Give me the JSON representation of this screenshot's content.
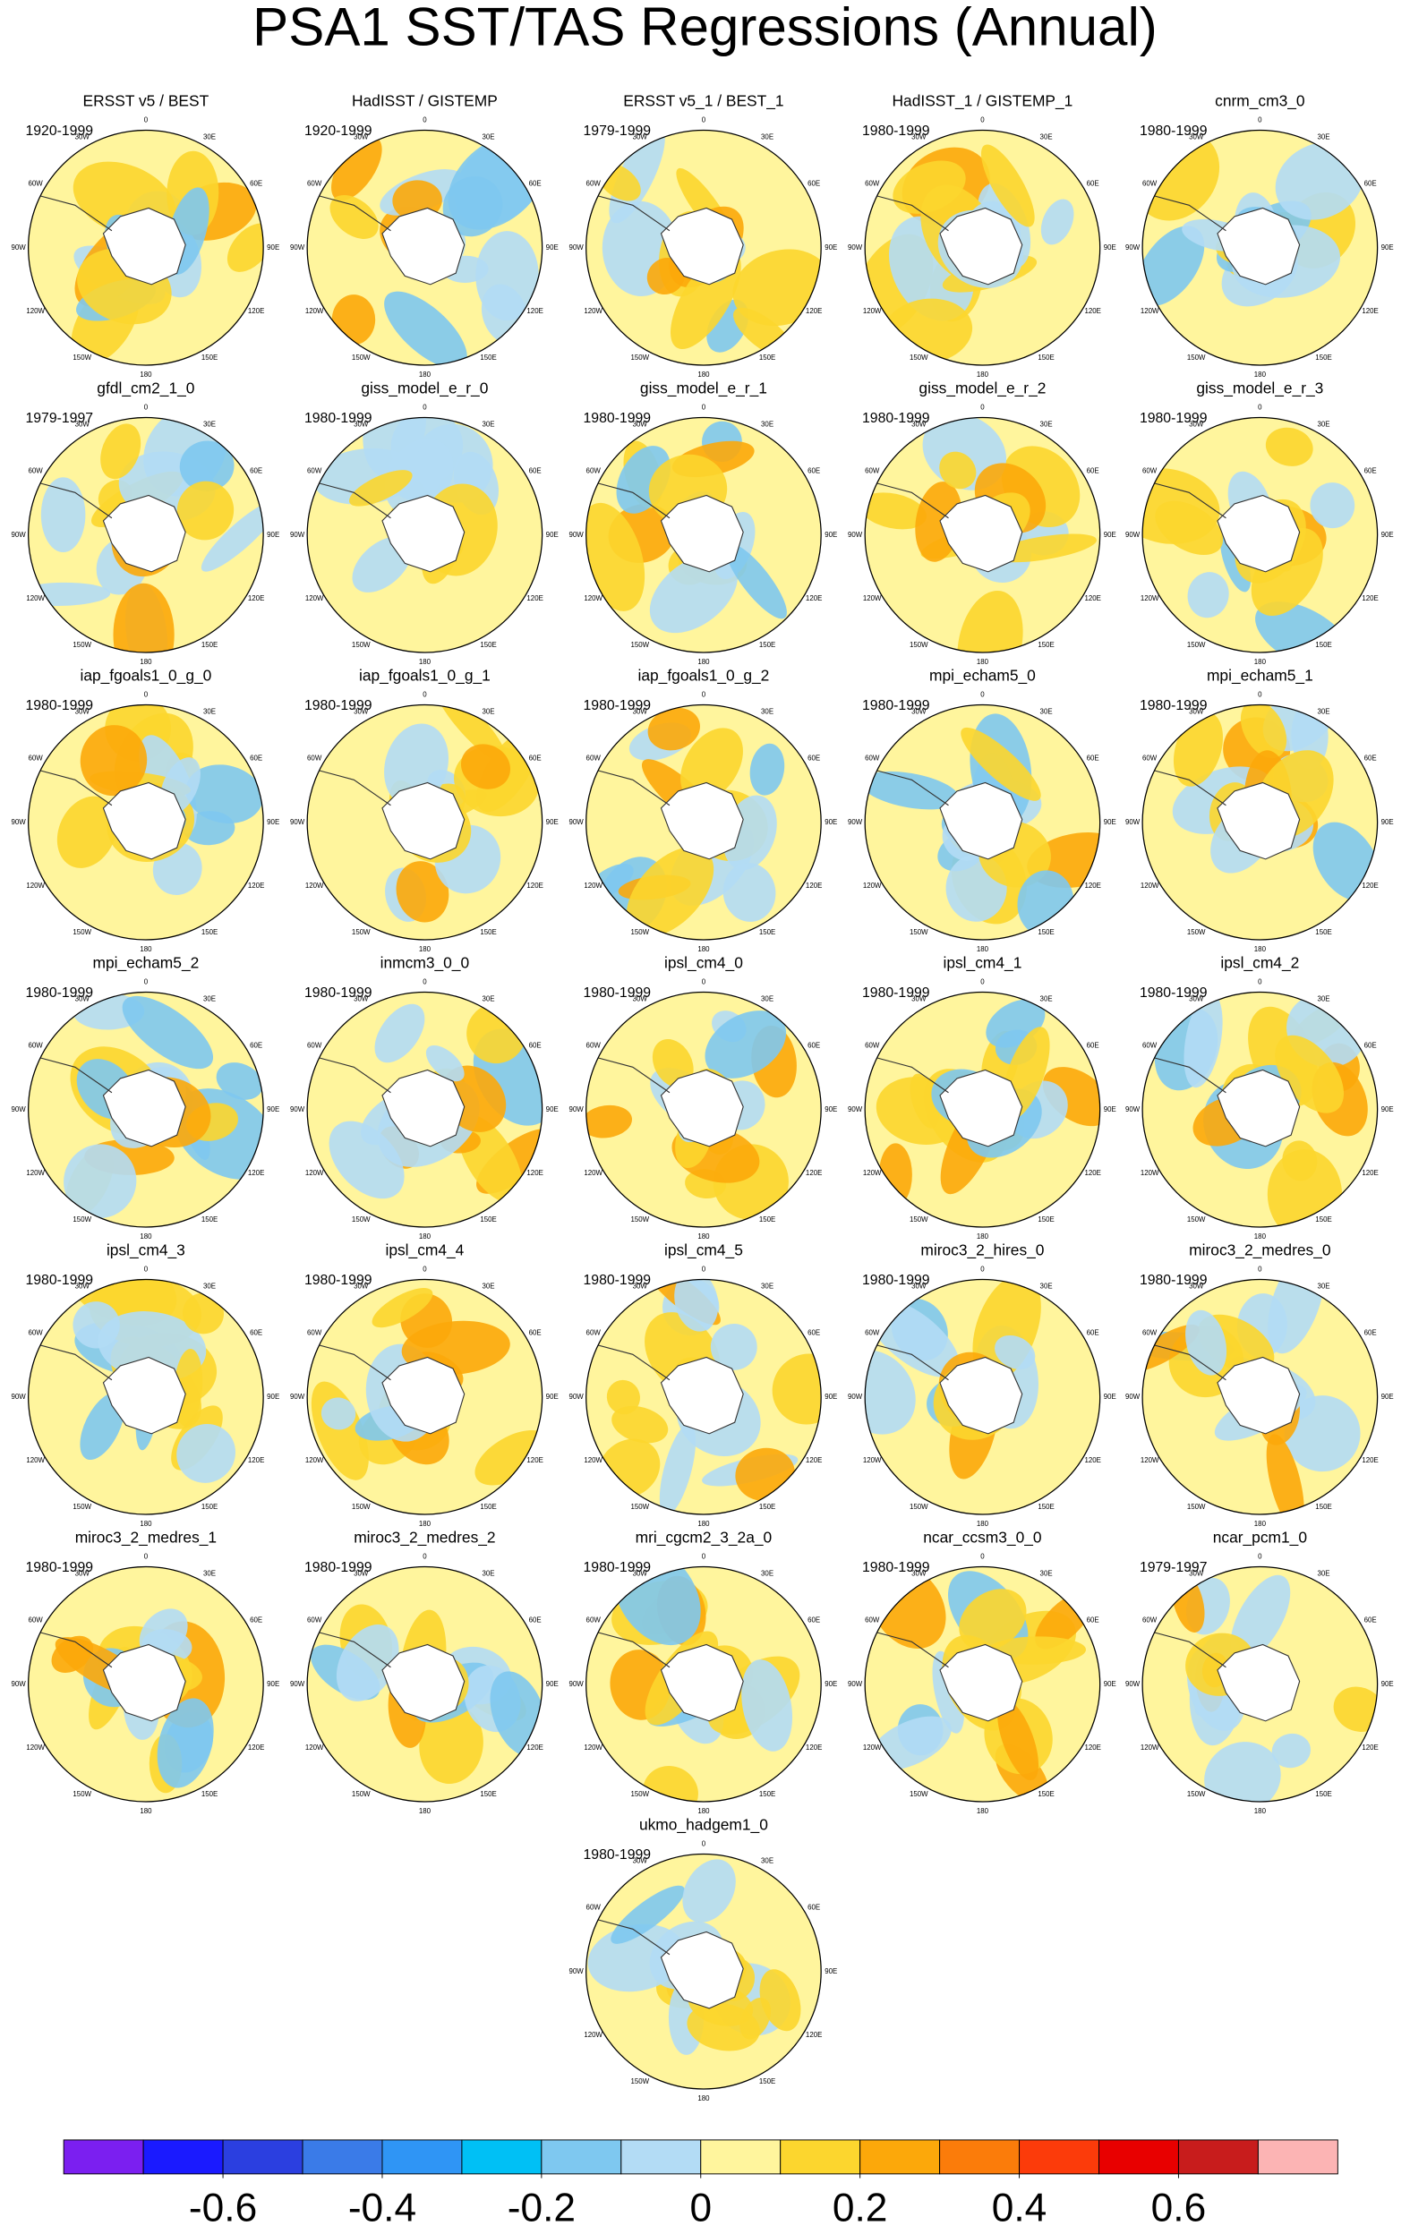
{
  "title": "PSA1 SST/TAS Regressions (Annual)",
  "lon_labels": [
    "0",
    "30E",
    "60E",
    "90E",
    "120E",
    "150E",
    "180",
    "150W",
    "120W",
    "90W",
    "60W",
    "30W"
  ],
  "panels": [
    {
      "name": "ERSST v5 / BEST",
      "period": "1920-1999"
    },
    {
      "name": "HadISST / GISTEMP",
      "period": "1920-1999"
    },
    {
      "name": "ERSST v5_1 / BEST_1",
      "period": "1979-1999"
    },
    {
      "name": "HadISST_1 / GISTEMP_1",
      "period": "1980-1999"
    },
    {
      "name": "cnrm_cm3_0",
      "period": "1980-1999"
    },
    {
      "name": "gfdl_cm2_1_0",
      "period": "1979-1997"
    },
    {
      "name": "giss_model_e_r_0",
      "period": "1980-1999"
    },
    {
      "name": "giss_model_e_r_1",
      "period": "1980-1999"
    },
    {
      "name": "giss_model_e_r_2",
      "period": "1980-1999"
    },
    {
      "name": "giss_model_e_r_3",
      "period": "1980-1999"
    },
    {
      "name": "iap_fgoals1_0_g_0",
      "period": "1980-1999"
    },
    {
      "name": "iap_fgoals1_0_g_1",
      "period": "1980-1999"
    },
    {
      "name": "iap_fgoals1_0_g_2",
      "period": "1980-1999"
    },
    {
      "name": "mpi_echam5_0",
      "period": "1980-1999"
    },
    {
      "name": "mpi_echam5_1",
      "period": "1980-1999"
    },
    {
      "name": "mpi_echam5_2",
      "period": "1980-1999"
    },
    {
      "name": "inmcm3_0_0",
      "period": "1980-1999"
    },
    {
      "name": "ipsl_cm4_0",
      "period": "1980-1999"
    },
    {
      "name": "ipsl_cm4_1",
      "period": "1980-1999"
    },
    {
      "name": "ipsl_cm4_2",
      "period": "1980-1999"
    },
    {
      "name": "ipsl_cm4_3",
      "period": "1980-1999"
    },
    {
      "name": "ipsl_cm4_4",
      "period": "1980-1999"
    },
    {
      "name": "ipsl_cm4_5",
      "period": "1980-1999"
    },
    {
      "name": "miroc3_2_hires_0",
      "period": "1980-1999"
    },
    {
      "name": "miroc3_2_medres_0",
      "period": "1980-1999"
    },
    {
      "name": "miroc3_2_medres_1",
      "period": "1980-1999"
    },
    {
      "name": "miroc3_2_medres_2",
      "period": "1980-1999"
    },
    {
      "name": "mri_cgcm2_3_2a_0",
      "period": "1980-1999"
    },
    {
      "name": "ncar_ccsm3_0_0",
      "period": "1980-1999"
    },
    {
      "name": "ncar_pcm1_0",
      "period": "1979-1997"
    },
    {
      "name": "ukmo_hadgem1_0",
      "period": "1980-1999"
    }
  ],
  "colorbar": {
    "colors": [
      "#7b1ff0",
      "#1a1aff",
      "#2b3fe0",
      "#3a7be8",
      "#2f95f5",
      "#00c0f5",
      "#7ec8f0",
      "#b3dcf5",
      "#fff59d",
      "#fcd62e",
      "#fca80a",
      "#fb7c0a",
      "#fc3b0a",
      "#e80000",
      "#c81c1c",
      "#fcb4b4"
    ],
    "xlim": [
      -0.8,
      0.8
    ],
    "xticks": [
      -0.6,
      -0.4,
      -0.2,
      0,
      0.2,
      0.4,
      0.6
    ]
  }
}
